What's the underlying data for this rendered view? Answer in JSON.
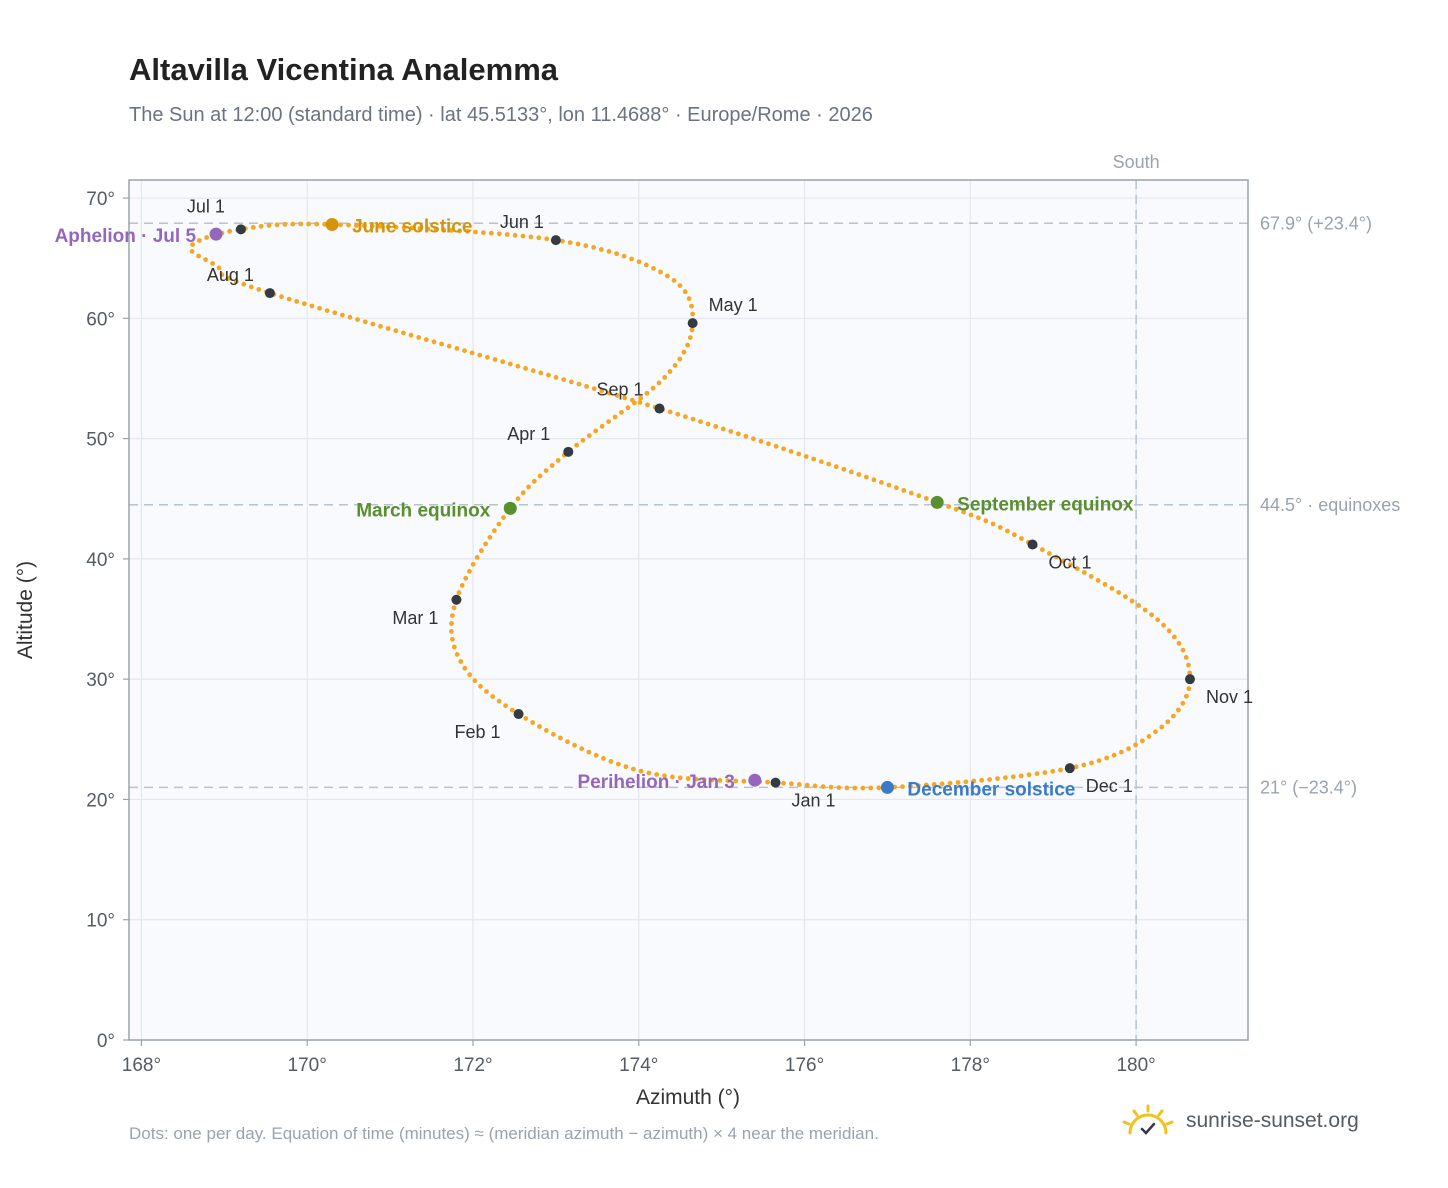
{
  "header": {
    "title": "Altavilla Vicentina Analemma",
    "subtitle": "The Sun at 12:00 (standard time) · lat 45.5133°, lon 11.4688° · Europe/Rome · 2026"
  },
  "footer": {
    "note": "Dots: one per day. Equation of time (minutes) ≈ (meridian azimuth − azimuth) × 4 near the meridian.",
    "brand": "sunrise-sunset.org"
  },
  "colors": {
    "curve": "#f5a623",
    "month_marker": "#333a42",
    "solstice_june": "#d4950b",
    "equinox": "#5a8f2e",
    "solstice_december": "#3a7bc8",
    "apsis": "#9467bd",
    "plot_bg": "#f8fafd",
    "grid": "#e3e8ee",
    "reference_line": "#b8c3d0"
  },
  "chart_data": {
    "type": "scatter",
    "title": "Altavilla Vicentina Analemma",
    "xlabel": "Azimuth (°)",
    "ylabel": "Altitude (°)",
    "xlim": [
      167.85,
      181.35
    ],
    "ylim": [
      0,
      71.5
    ],
    "x_ticks": [
      168,
      170,
      172,
      174,
      176,
      178,
      180
    ],
    "x_tick_labels": [
      "168°",
      "170°",
      "172°",
      "174°",
      "176°",
      "178°",
      "180°"
    ],
    "y_ticks": [
      0,
      10,
      20,
      30,
      40,
      50,
      60,
      70
    ],
    "y_tick_labels": [
      "0°",
      "10°",
      "20°",
      "30°",
      "40°",
      "50°",
      "60°",
      "70°"
    ],
    "grid": true,
    "reference_lines": {
      "horizontal": [
        {
          "y": 67.9,
          "label": "67.9° (+23.4°)"
        },
        {
          "y": 44.5,
          "label": "44.5° · equinoxes"
        },
        {
          "y": 21.0,
          "label": "21° (−23.4°)"
        }
      ],
      "vertical": [
        {
          "x": 180,
          "label": "South"
        }
      ]
    },
    "month_markers": [
      {
        "label": "Jan 1",
        "azimuth": 175.65,
        "altitude": 21.4
      },
      {
        "label": "Feb 1",
        "azimuth": 172.55,
        "altitude": 27.1
      },
      {
        "label": "Mar 1",
        "azimuth": 171.8,
        "altitude": 36.6
      },
      {
        "label": "Apr 1",
        "azimuth": 173.15,
        "altitude": 48.9
      },
      {
        "label": "May 1",
        "azimuth": 174.65,
        "altitude": 59.6
      },
      {
        "label": "Jun 1",
        "azimuth": 173.0,
        "altitude": 66.5
      },
      {
        "label": "Jul 1",
        "azimuth": 169.2,
        "altitude": 67.4
      },
      {
        "label": "Aug 1",
        "azimuth": 169.55,
        "altitude": 62.1
      },
      {
        "label": "Sep 1",
        "azimuth": 174.25,
        "altitude": 52.5
      },
      {
        "label": "Oct 1",
        "azimuth": 178.75,
        "altitude": 41.2
      },
      {
        "label": "Nov 1",
        "azimuth": 180.65,
        "altitude": 30.0
      },
      {
        "label": "Dec 1",
        "azimuth": 179.2,
        "altitude": 22.6
      }
    ],
    "events": [
      {
        "label": "June solstice",
        "azimuth": 170.3,
        "altitude": 67.8,
        "color_key": "solstice_june"
      },
      {
        "label": "March equinox",
        "azimuth": 172.45,
        "altitude": 44.2,
        "color_key": "equinox"
      },
      {
        "label": "September equinox",
        "azimuth": 177.6,
        "altitude": 44.7,
        "color_key": "equinox"
      },
      {
        "label": "December solstice",
        "azimuth": 177.0,
        "altitude": 21.0,
        "color_key": "solstice_december"
      },
      {
        "label": "Aphelion · Jul 5",
        "azimuth": 168.9,
        "altitude": 67.0,
        "color_key": "apsis"
      },
      {
        "label": "Perihelion · Jan 3",
        "azimuth": 175.4,
        "altitude": 21.6,
        "color_key": "apsis"
      }
    ],
    "curve_anchors": [
      {
        "azimuth": 175.65,
        "altitude": 21.4
      },
      {
        "azimuth": 174.0,
        "altitude": 22.4
      },
      {
        "azimuth": 172.55,
        "altitude": 27.1
      },
      {
        "azimuth": 171.85,
        "altitude": 31.5
      },
      {
        "azimuth": 171.8,
        "altitude": 36.6
      },
      {
        "azimuth": 172.45,
        "altitude": 44.2
      },
      {
        "azimuth": 173.15,
        "altitude": 48.9
      },
      {
        "azimuth": 174.3,
        "altitude": 55.0
      },
      {
        "azimuth": 174.65,
        "altitude": 59.6
      },
      {
        "azimuth": 174.35,
        "altitude": 63.5
      },
      {
        "azimuth": 173.0,
        "altitude": 66.5
      },
      {
        "azimuth": 170.3,
        "altitude": 67.8
      },
      {
        "azimuth": 169.2,
        "altitude": 67.4
      },
      {
        "azimuth": 168.6,
        "altitude": 66.0
      },
      {
        "azimuth": 168.9,
        "altitude": 64.4
      },
      {
        "azimuth": 169.55,
        "altitude": 62.1
      },
      {
        "azimuth": 174.25,
        "altitude": 52.5
      },
      {
        "azimuth": 177.6,
        "altitude": 44.7
      },
      {
        "azimuth": 178.75,
        "altitude": 41.2
      },
      {
        "azimuth": 180.25,
        "altitude": 35.0
      },
      {
        "azimuth": 180.65,
        "altitude": 30.0
      },
      {
        "azimuth": 180.25,
        "altitude": 25.7
      },
      {
        "azimuth": 179.2,
        "altitude": 22.6
      },
      {
        "azimuth": 177.0,
        "altitude": 21.0
      },
      {
        "azimuth": 175.65,
        "altitude": 21.4
      }
    ]
  }
}
